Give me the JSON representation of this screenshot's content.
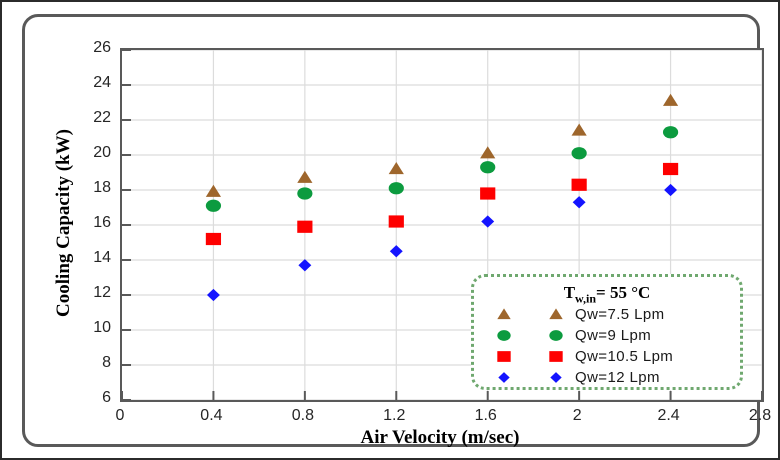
{
  "colors": {
    "axis": "#595959",
    "grid": "#dcdcdc",
    "tick_text": "#262626",
    "figure_edge": "#2b2b2b",
    "legend_border": "#6fa86f",
    "series_brown": "#9e662c",
    "series_green": "#0c9b3f",
    "series_red": "#fe0000",
    "series_blue": "#1414ff"
  },
  "chart_data": {
    "type": "scatter",
    "xlabel": "Air Velocity (m/sec)",
    "ylabel": "Cooling Capacity (kW)",
    "x_range": [
      0,
      2.8
    ],
    "y_range": [
      6,
      26
    ],
    "grid": true,
    "x_ticks": {
      "values": [
        0,
        0.4,
        0.8,
        1.2,
        1.6,
        2,
        2.4,
        2.8
      ],
      "labels": [
        "0",
        "0.4",
        "0.8",
        "1.2",
        "1.6",
        "2",
        "2.4",
        "2.8"
      ]
    },
    "y_ticks": {
      "values": [
        6,
        8,
        10,
        12,
        14,
        16,
        18,
        20,
        22,
        24,
        26
      ],
      "labels": [
        "6",
        "8",
        "10",
        "12",
        "14",
        "16",
        "18",
        "20",
        "22",
        "24",
        "26"
      ]
    },
    "x": [
      0.4,
      0.8,
      1.2,
      1.6,
      2,
      2.4
    ],
    "series": [
      {
        "name": "Qw=7.5 Lpm",
        "marker": "triangle",
        "color": "#9e662c",
        "values": [
          17.9,
          18.7,
          19.2,
          20.1,
          21.4,
          23.1
        ]
      },
      {
        "name": "Qw=9 Lpm",
        "marker": "circle",
        "color": "#0c9b3f",
        "values": [
          17.1,
          17.8,
          18.1,
          19.3,
          20.1,
          21.3
        ]
      },
      {
        "name": "Qw=10.5 Lpm",
        "marker": "square",
        "color": "#fe0000",
        "values": [
          15.2,
          15.9,
          16.2,
          17.8,
          18.3,
          19.2
        ]
      },
      {
        "name": "Qw=12 Lpm",
        "marker": "diamond",
        "color": "#1414ff",
        "values": [
          12.0,
          13.7,
          14.5,
          16.2,
          17.3,
          18.0
        ]
      }
    ],
    "legend": {
      "position": "bottom-right",
      "title": {
        "prefix": "T",
        "sub": "w,in",
        "rest": "= 55 °C"
      }
    }
  }
}
